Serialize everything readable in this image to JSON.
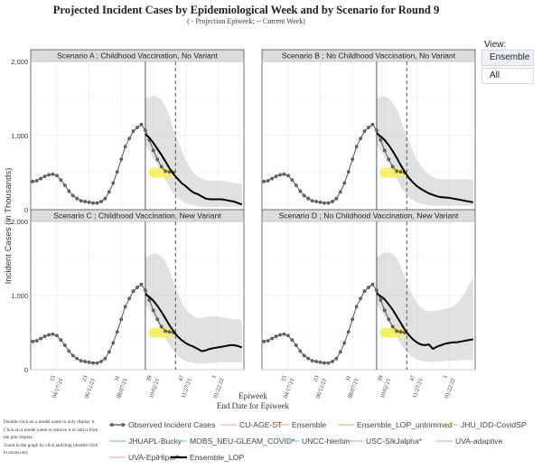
{
  "header": {
    "title": "Projected Incident Cases by Epidemiological Week and by Scenario for Round 9",
    "subtitle": "( - Projection Epiweek; -- Current Week)"
  },
  "view": {
    "label": "View:",
    "options": [
      "Ensemble",
      "All"
    ],
    "selected": "Ensemble"
  },
  "instructions": [
    "Double-click on a model name to only display it.",
    "Click on a model name to remove it or add it from",
    "the plot display.",
    "Zoom in the graph by click and drag (double-click",
    "to zoom out)"
  ],
  "legend": {
    "items": [
      {
        "name": "Observed Incident Cases",
        "color": "#555555",
        "style": "markers"
      },
      {
        "name": "CU-AGE-ST",
        "color": "#f4b6a6",
        "style": "line"
      },
      {
        "name": "Ensemble",
        "color": "#f3b28e",
        "style": "line"
      },
      {
        "name": "Ensemble_LOP_untrimmed",
        "color": "#d4c47f",
        "style": "line"
      },
      {
        "name": "JHU_IDD-CovidSP",
        "color": "#a9d47f",
        "style": "line"
      },
      {
        "name": "JHUAPL-Bucky",
        "color": "#8fcf9c",
        "style": "line"
      },
      {
        "name": "MOBS_NEU-GLEAM_COVID*",
        "color": "#7fd1c4",
        "style": "line"
      },
      {
        "name": "UNCC-hierbin",
        "color": "#7fc6e0",
        "style": "line"
      },
      {
        "name": "USC-SIkJalpha*",
        "color": "#a6b4ec",
        "style": "line"
      },
      {
        "name": "UVA-adaptive",
        "color": "#d8a6ec",
        "style": "line"
      },
      {
        "name": "UVA-EpiHiper*",
        "color": "#f0a6d4",
        "style": "line"
      },
      {
        "name": "Ensemble_LOP",
        "color": "#000000",
        "style": "thick"
      }
    ]
  },
  "chart_data": {
    "type": "line",
    "ylabel": "Incident Cases (in Thousands)",
    "xlabel": "Epiweek",
    "xlabel2": "End Date for Epiweek",
    "ylim": [
      0,
      2000
    ],
    "xlim": [
      8.5,
      61.5
    ],
    "grid": true,
    "legend_placement": "bottom",
    "y_ticks": [
      {
        "value": 0,
        "label": "0"
      },
      {
        "value": 1000,
        "label": "1,000"
      },
      {
        "value": 2000,
        "label": "2,000"
      }
    ],
    "x_ticks": [
      {
        "week": 15,
        "label": "15",
        "date": "04/17/21"
      },
      {
        "week": 23,
        "label": "23",
        "date": "06/12/21"
      },
      {
        "week": 31,
        "label": "31",
        "date": "08/07/21"
      },
      {
        "week": 39,
        "label": "39",
        "date": "10/02/21"
      },
      {
        "week": 47,
        "label": "47",
        "date": "11/27/21"
      },
      {
        "week": 55,
        "label": "3",
        "date": "01/22/22"
      }
    ],
    "projection_start_week": 37,
    "current_week": 44.5,
    "highlight": {
      "week_from": 39,
      "week_to": 43,
      "value": 500
    },
    "observed": {
      "name": "Observed Incident Cases",
      "weeks": [
        9,
        10,
        11,
        12,
        13,
        14,
        15,
        16,
        17,
        18,
        19,
        20,
        21,
        22,
        23,
        24,
        25,
        26,
        27,
        28,
        29,
        30,
        31,
        32,
        33,
        34,
        35,
        36,
        37,
        38,
        39,
        40,
        41,
        42,
        43,
        44
      ],
      "values": [
        380,
        390,
        420,
        450,
        470,
        480,
        460,
        400,
        330,
        250,
        190,
        150,
        120,
        110,
        100,
        90,
        90,
        110,
        150,
        240,
        360,
        510,
        680,
        850,
        960,
        1060,
        1110,
        1150,
        1070,
        940,
        800,
        680,
        580,
        520,
        510,
        500
      ]
    },
    "panels": [
      {
        "title": "Scenario A ; Childhood Vaccination, No Variant",
        "weeks": [
          37,
          38,
          39,
          40,
          41,
          42,
          43,
          44,
          45,
          46,
          47,
          48,
          49,
          50,
          51,
          52,
          53,
          54,
          55,
          56,
          57,
          58,
          59,
          60,
          61
        ],
        "ensemble_lop": [
          1020,
          970,
          900,
          820,
          740,
          650,
          560,
          480,
          420,
          360,
          320,
          270,
          230,
          210,
          180,
          150,
          140,
          140,
          140,
          140,
          130,
          120,
          110,
          90,
          70
        ],
        "band_upper": [
          1500,
          1520,
          1540,
          1520,
          1480,
          1400,
          1260,
          1080,
          940,
          800,
          680,
          580,
          500,
          450,
          420,
          400,
          390,
          390,
          390,
          390,
          380,
          370,
          360,
          350,
          350
        ],
        "band_lower": [
          880,
          800,
          700,
          600,
          500,
          400,
          300,
          220,
          160,
          120,
          90,
          70,
          60,
          50,
          40,
          40,
          40,
          40,
          40,
          40,
          40,
          40,
          40,
          40,
          40
        ]
      },
      {
        "title": "Scenario B ; No Childhood Vaccination, No Variant",
        "weeks": [
          37,
          38,
          39,
          40,
          41,
          42,
          43,
          44,
          45,
          46,
          47,
          48,
          49,
          50,
          51,
          52,
          53,
          54,
          55,
          56,
          57,
          58,
          59,
          60,
          61
        ],
        "ensemble_lop": [
          1030,
          990,
          940,
          870,
          790,
          700,
          600,
          510,
          430,
          370,
          320,
          280,
          250,
          220,
          200,
          180,
          170,
          165,
          160,
          150,
          140,
          130,
          120,
          110,
          100
        ],
        "band_upper": [
          1500,
          1520,
          1530,
          1500,
          1450,
          1360,
          1220,
          1060,
          920,
          790,
          680,
          590,
          520,
          470,
          440,
          420,
          410,
          410,
          410,
          410,
          410,
          410,
          410,
          410,
          410
        ],
        "band_lower": [
          880,
          800,
          710,
          610,
          510,
          410,
          310,
          230,
          170,
          130,
          100,
          80,
          70,
          60,
          55,
          50,
          50,
          50,
          50,
          50,
          50,
          50,
          50,
          50,
          50
        ]
      },
      {
        "title": "Scenario C ; Childhood Vaccination, New Variant",
        "weeks": [
          37,
          38,
          39,
          40,
          41,
          42,
          43,
          44,
          45,
          46,
          47,
          48,
          49,
          50,
          51,
          52,
          53,
          54,
          55,
          56,
          57,
          58,
          59,
          60,
          61
        ],
        "ensemble_lop": [
          1020,
          980,
          930,
          860,
          780,
          690,
          600,
          520,
          450,
          400,
          360,
          330,
          310,
          280,
          250,
          260,
          280,
          290,
          300,
          310,
          320,
          330,
          330,
          320,
          300
        ],
        "band_upper": [
          1510,
          1540,
          1570,
          1560,
          1530,
          1460,
          1340,
          1190,
          1040,
          920,
          820,
          760,
          720,
          700,
          700,
          710,
          720,
          720,
          720,
          710,
          700,
          690,
          680,
          680,
          670
        ],
        "band_lower": [
          880,
          810,
          720,
          620,
          520,
          420,
          330,
          250,
          190,
          150,
          120,
          100,
          90,
          80,
          80,
          80,
          90,
          90,
          100,
          100,
          100,
          100,
          100,
          100,
          100
        ]
      },
      {
        "title": "Scenario D ; No Childhood Vaccination, New Variant",
        "weeks": [
          37,
          38,
          39,
          40,
          41,
          42,
          43,
          44,
          45,
          46,
          47,
          48,
          49,
          50,
          51,
          52,
          53,
          54,
          55,
          56,
          57,
          58,
          59,
          60,
          61
        ],
        "ensemble_lop": [
          1030,
          990,
          950,
          880,
          810,
          720,
          630,
          540,
          470,
          410,
          370,
          340,
          330,
          340,
          280,
          310,
          330,
          350,
          360,
          370,
          370,
          380,
          390,
          400,
          410
        ],
        "band_upper": [
          1510,
          1550,
          1580,
          1580,
          1560,
          1500,
          1390,
          1250,
          1110,
          990,
          900,
          840,
          800,
          790,
          790,
          800,
          810,
          820,
          830,
          850,
          900,
          960,
          1040,
          1150,
          1250
        ],
        "band_lower": [
          880,
          810,
          730,
          630,
          530,
          440,
          350,
          270,
          210,
          170,
          140,
          120,
          110,
          110,
          100,
          110,
          110,
          120,
          120,
          120,
          120,
          130,
          130,
          130,
          130
        ]
      }
    ]
  }
}
